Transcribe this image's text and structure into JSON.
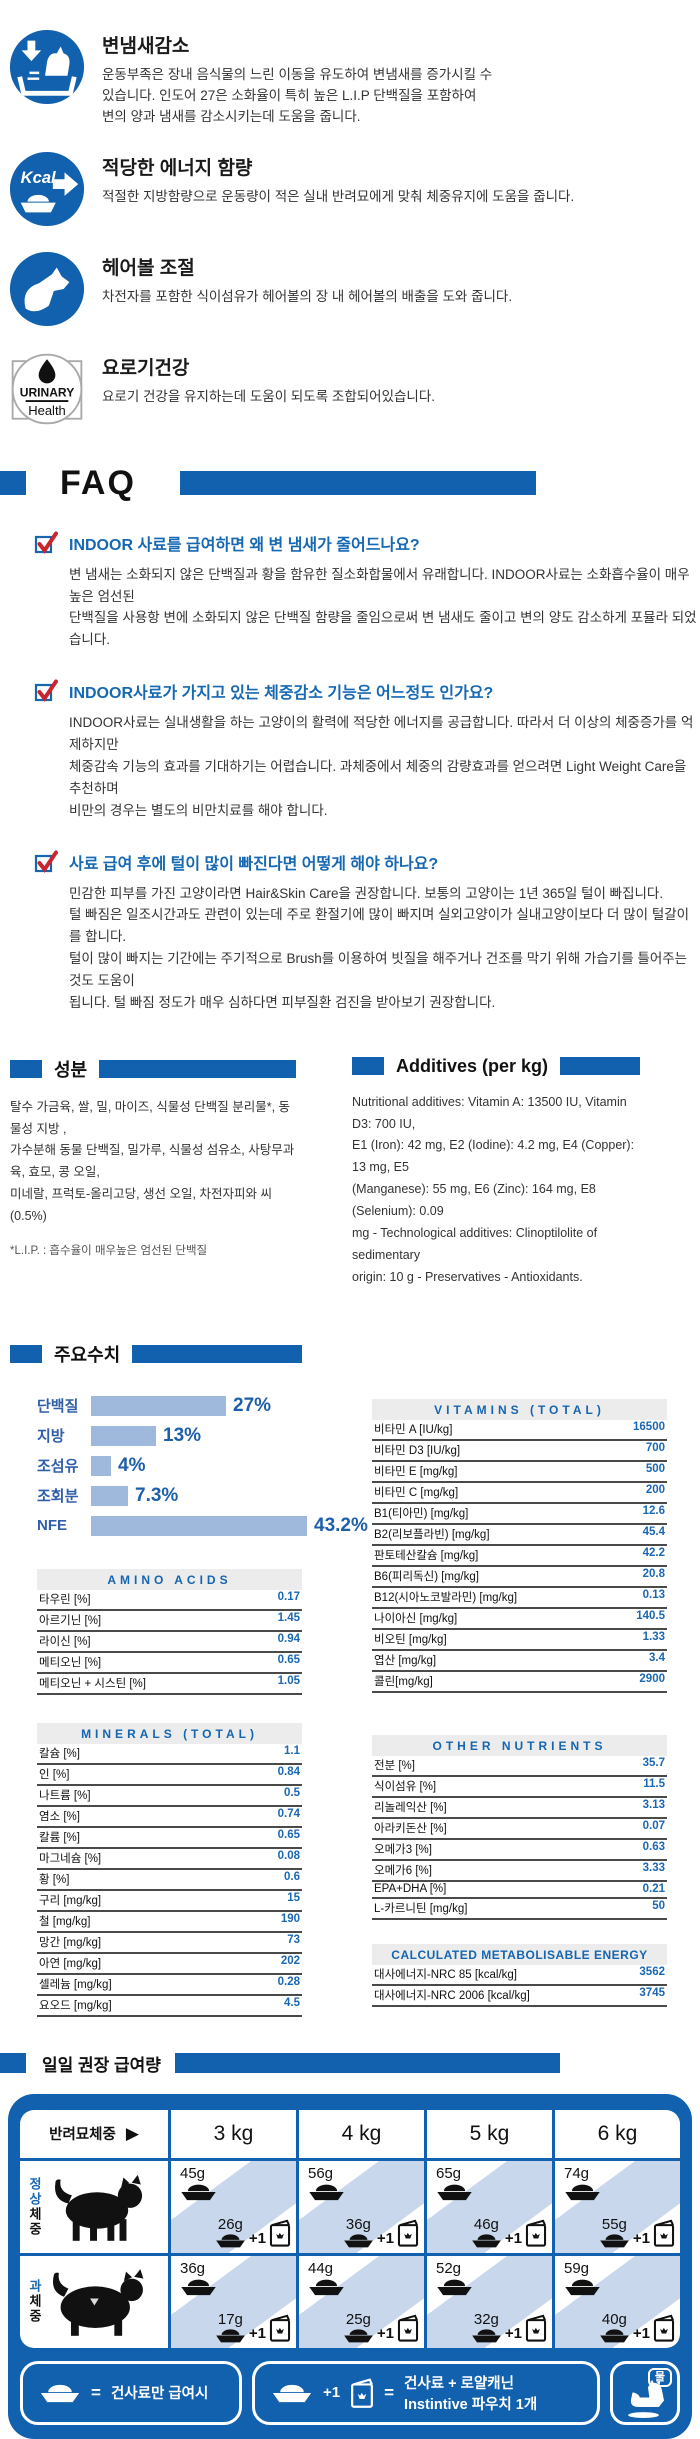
{
  "colors": {
    "accent_blue": "#1161ae",
    "light_blue_bar": "#9fb9dc",
    "cell_stripe": "#c9d7ec",
    "value_blue": "#1a67b2",
    "question_blue": "#1668b3",
    "check_red": "#c9252c"
  },
  "features": [
    {
      "icon": "litter-box-odor-icon",
      "title": "변냄새감소",
      "desc": "운동부족은 장내 음식물의 느린 이동을 유도하여 변냄새를 증가시킬 수\n있습니다. 인도어 27은 소화율이 특히 높은 L.I.P 단백질을 포함하여\n변의 양과 냄새를 감소시키는데 도움을 줍니다."
    },
    {
      "icon": "kcal-energy-icon",
      "icon_text": "Kcal",
      "title": "적당한 에너지 함량",
      "desc": "적절한 지방함량으로 운동량이 적은 실내 반려묘에게 맞춰 체중유지에 도움을 줍니다."
    },
    {
      "icon": "hairball-control-icon",
      "title": "헤어볼 조절",
      "desc": "차전자를 포함한 식이섬유가 헤어볼의 장 내 헤어볼의 배출을 도와 줍니다."
    },
    {
      "icon": "urinary-health-badge-icon",
      "badge_line1": "URINARY",
      "badge_line2": "Health",
      "title": "요로기건강",
      "desc": "요로기 건강을 유지하는데 도움이 되도록 조합되어있습니다."
    }
  ],
  "faq": {
    "title": "FAQ",
    "items": [
      {
        "q": "INDOOR 사료를 급여하면 왜 변 냄새가 줄어드나요?",
        "a": "변 냄새는 소화되지 않은 단백질과 황을 함유한 질소화합물에서 유래합니다. INDOOR사료는 소화흡수율이 매우 높은 엄선된\n단백질을 사용항 변에 소화되지 않은 단백질 함량을 줄임으로써 변 냄새도 줄이고 변의 양도 감소하게 포뮬라 되었습니다."
      },
      {
        "q": "INDOOR사료가 가지고 있는 체중감소 기능은 어느정도 인가요?",
        "a": "INDOOR사료는 실내생활을 하는 고양이의 활력에 적당한 에너지를 공급합니다. 따라서 더 이상의 체중증가를 억제하지만\n체중감속 기능의 효과를 기대하기는 어렵습니다. 과체중에서 체중의 감량효과를 얻으려면 Light Weight Care을 추천하며\n비만의 경우는 별도의 비만치료를 해야 합니다."
      },
      {
        "q": "사료 급여 후에 털이 많이 빠진다면 어떻게 해야 하나요?",
        "a": "민감한 피부를 가진 고양이라면 Hair&Skin Care을 권장합니다. 보통의 고양이는 1년 365일 털이 빠집니다.\n털 빠짐은 일조시간과도 관련이 있는데 주로 환절기에 많이 빠지며 실외고양이가 실내고양이보다 더 많이 털갈이를 합니다.\n털이 많이 빠지는 기간에는 주기적으로 Brush를 이용하여 빗질을 해주거나 건조를 막기 위해 가습기를 틀어주는 것도 도움이\n됩니다. 털 빠짐 정도가 매우 심하다면 피부질환 검진을 받아보기 권장합니다."
      }
    ]
  },
  "ingredients": {
    "title": "성분",
    "text": "탈수 가금육, 쌀, 밀, 마이즈, 식물성 단백질 분리물*, 동물성 지방 ,\n가수분해 동물 단백질, 밀가루, 식물성 섬유소, 사탕무과육, 효모, 콩 오일,\n미네랄, 프럭토-올리고당, 생선 오일, 차전자피와 씨(0.5%)",
    "footnote": "*L.I.P. : 흡수율이 매우높은 엄선된 단백질"
  },
  "additives": {
    "title": "Additives (per kg)",
    "text": "Nutritional additives: Vitamin A: 13500 IU, Vitamin D3: 700 IU,\nE1 (Iron): 42 mg, E2 (Iodine): 4.2 mg, E4 (Copper): 13 mg, E5\n(Manganese): 55 mg, E6 (Zinc): 164 mg, E8 (Selenium): 0.09\nmg - Technological additives: Clinoptilolite of sedimentary\norigin: 10 g - Preservatives - Antioxidants."
  },
  "key_figures_title": "주요수치",
  "chart_data": {
    "type": "bar",
    "orientation": "horizontal",
    "title": "주요수치",
    "categories": [
      "단백질",
      "지방",
      "조섬유",
      "조회분",
      "NFE"
    ],
    "values": [
      27,
      13,
      4,
      7.3,
      43.2
    ],
    "labels": [
      "27%",
      "13%",
      "4%",
      "7.3%",
      "43.2%"
    ],
    "xlim": [
      0,
      50
    ],
    "bar_color": "#9fb9dc",
    "grid": false,
    "legend_position": "none"
  },
  "tables": {
    "amino_acids": {
      "title": "AMINO ACIDS",
      "rows": [
        [
          "타우린 [%]",
          "0.17"
        ],
        [
          "아르기닌 [%]",
          "1.45"
        ],
        [
          "라이신 [%]",
          "0.94"
        ],
        [
          "메티오닌 [%]",
          "0.65"
        ],
        [
          "메티오닌 + 시스틴 [%]",
          "1.05"
        ]
      ]
    },
    "minerals": {
      "title": "MINERALS (TOTAL)",
      "rows": [
        [
          "칼슘 [%]",
          "1.1"
        ],
        [
          "인 [%]",
          "0.84"
        ],
        [
          "나트륨 [%]",
          "0.5"
        ],
        [
          "염소 [%]",
          "0.74"
        ],
        [
          "칼륨 [%]",
          "0.65"
        ],
        [
          "마그네슘 [%]",
          "0.08"
        ],
        [
          "황 [%]",
          "0.6"
        ],
        [
          "구리 [mg/kg]",
          "15"
        ],
        [
          "철 [mg/kg]",
          "190"
        ],
        [
          "망간 [mg/kg]",
          "73"
        ],
        [
          "아연 [mg/kg]",
          "202"
        ],
        [
          "셀레늄 [mg/kg]",
          "0.28"
        ],
        [
          "요오드 [mg/kg]",
          "4.5"
        ]
      ]
    },
    "vitamins": {
      "title": "VITAMINS (TOTAL)",
      "rows": [
        [
          "비타민 A [IU/kg]",
          "16500"
        ],
        [
          "비타민 D3 [IU/kg]",
          "700"
        ],
        [
          "비타민 E [mg/kg]",
          "500"
        ],
        [
          "비타민 C [mg/kg]",
          "200"
        ],
        [
          "B1(티아민) [mg/kg]",
          "12.6"
        ],
        [
          "B2(리보플라빈) [mg/kg]",
          "45.4"
        ],
        [
          "판토테산칼슘 [mg/kg]",
          "42.2"
        ],
        [
          "B6(피리독신) [mg/kg]",
          "20.8"
        ],
        [
          "B12(시아노코발라민) [mg/kg]",
          "0.13"
        ],
        [
          "나이아신 [mg/kg]",
          "140.5"
        ],
        [
          "비오틴 [mg/kg]",
          "1.33"
        ],
        [
          "엽산 [mg/kg]",
          "3.4"
        ],
        [
          "콜린[mg/kg]",
          "2900"
        ]
      ]
    },
    "other_nutrients": {
      "title": "OTHER NUTRIENTS",
      "rows": [
        [
          "전분 [%]",
          "35.7"
        ],
        [
          "식이섬유 [%]",
          "11.5"
        ],
        [
          "리놀레익산 [%]",
          "3.13"
        ],
        [
          "아라키돈산 [%]",
          "0.07"
        ],
        [
          "오메가3 [%]",
          "0.63"
        ],
        [
          "오메가6 [%]",
          "3.33"
        ],
        [
          "EPA+DHA [%]",
          "0.21"
        ],
        [
          "L-카르니틴 [mg/kg]",
          "50"
        ]
      ]
    },
    "energy": {
      "title": "CALCULATED METABOLISABLE ENERGY",
      "rows": [
        [
          "대사에너지-NRC 85 [kcal/kg]",
          "3562"
        ],
        [
          "대사에너지-NRC 2006 [kcal/kg]",
          "3745"
        ]
      ]
    }
  },
  "feeding": {
    "title": "일일 권장 급여량",
    "weight_label": "반려묘체중",
    "arrow_glyph": "▶",
    "weights": [
      "3 kg",
      "4 kg",
      "5 kg",
      "6 kg"
    ],
    "rows": [
      {
        "label_highlight": "정상",
        "label_rest": "체중",
        "cells": [
          {
            "dry": "45g",
            "mixed": "26g"
          },
          {
            "dry": "56g",
            "mixed": "36g"
          },
          {
            "dry": "65g",
            "mixed": "46g"
          },
          {
            "dry": "74g",
            "mixed": "55g"
          }
        ]
      },
      {
        "label_highlight": "과",
        "label_rest": "체중",
        "cells": [
          {
            "dry": "36g",
            "mixed": "17g"
          },
          {
            "dry": "44g",
            "mixed": "25g"
          },
          {
            "dry": "52g",
            "mixed": "32g"
          },
          {
            "dry": "59g",
            "mixed": "40g"
          }
        ]
      }
    ],
    "plus_one": "+1",
    "legend": {
      "equals": "=",
      "dry_only": "건사료만 급여시",
      "mixed": "건사료 + 로얄캐닌 Instintive 파우치 1개",
      "water": "물"
    }
  }
}
